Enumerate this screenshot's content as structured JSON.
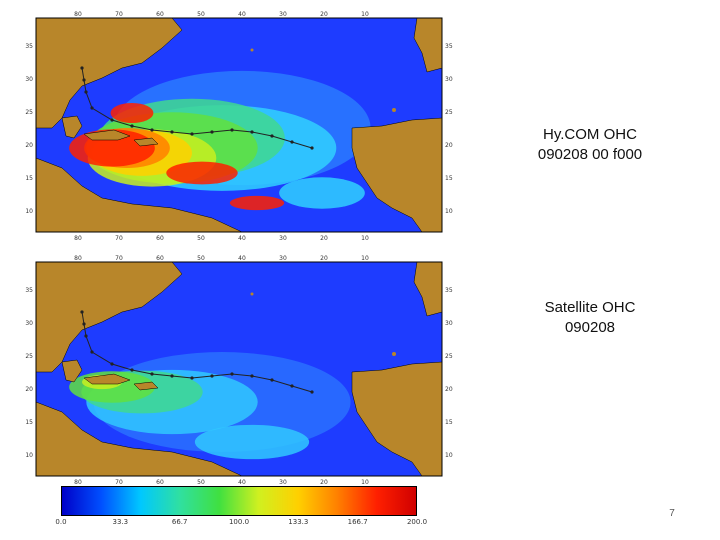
{
  "slide": {
    "page_number": "7"
  },
  "panels": [
    {
      "id": "hycom",
      "caption_line1": "Hy.COM OHC",
      "caption_line2": "090208 00 f000",
      "lon_labels": [
        "80",
        "70",
        "60",
        "50",
        "40",
        "30",
        "20",
        "10"
      ],
      "lat_labels_left": [
        "35",
        "30",
        "25",
        "20",
        "15",
        "10"
      ],
      "lat_labels_right": [
        "35",
        "30",
        "25",
        "20",
        "15",
        "10"
      ],
      "field_character": "warm"
    },
    {
      "id": "satellite",
      "caption_line1": "Satellite OHC",
      "caption_line2": "090208",
      "lon_labels": [
        "80",
        "70",
        "60",
        "50",
        "40",
        "30",
        "20",
        "10"
      ],
      "lat_labels_left": [
        "35",
        "30",
        "25",
        "20",
        "15",
        "10"
      ],
      "lat_labels_right": [
        "35",
        "30",
        "25",
        "20",
        "15",
        "10"
      ],
      "field_character": "cool"
    }
  ],
  "colorbar": {
    "tick_labels": [
      "0.0",
      "33.3",
      "66.7",
      "100.0",
      "133.3",
      "166.7",
      "200.0"
    ],
    "colors": [
      "#0000c8",
      "#0050ff",
      "#00c8ff",
      "#30e0a0",
      "#40e040",
      "#d0f020",
      "#ffd000",
      "#ff8000",
      "#ff2000",
      "#d00000"
    ]
  },
  "colors": {
    "land": "#b8862a",
    "ocean_deep": "#1e3cff",
    "track": "#222222"
  }
}
